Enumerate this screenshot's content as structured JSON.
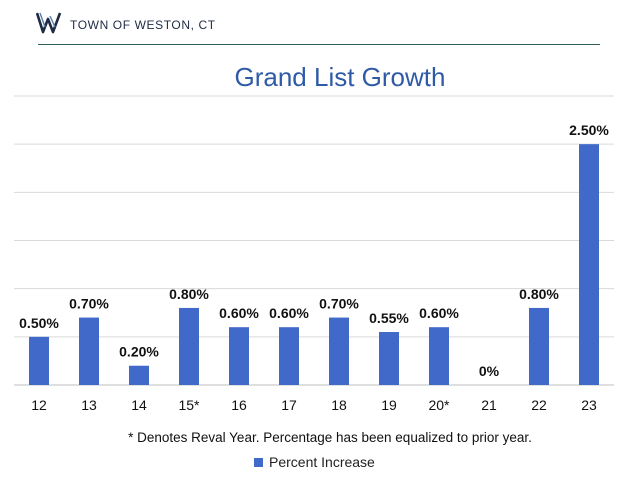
{
  "header": {
    "org_name": "TOWN OF WESTON, CT",
    "logo_icon": "weston-w-logo-icon"
  },
  "chart_data": {
    "type": "bar",
    "title": "Grand List Growth",
    "categories": [
      "12",
      "13",
      "14",
      "15*",
      "16",
      "17",
      "18",
      "19",
      "20*",
      "21",
      "22",
      "23"
    ],
    "series": [
      {
        "name": "Percent Increase",
        "values": [
          0.5,
          0.7,
          0.2,
          0.8,
          0.6,
          0.6,
          0.7,
          0.55,
          0.6,
          0,
          0.8,
          2.5
        ],
        "labels": [
          "0.50%",
          "0.70%",
          "0.20%",
          "0.80%",
          "0.60%",
          "0.60%",
          "0.70%",
          "0.55%",
          "0.60%",
          "0%",
          "0.80%",
          "2.50%"
        ],
        "color": "#4169c9"
      }
    ],
    "ylim": [
      0,
      3.0
    ],
    "y_gridlines": [
      0.5,
      1.0,
      1.5,
      2.0,
      2.5,
      3.0
    ],
    "grid": true,
    "legend_position": "bottom",
    "footnote": "* Denotes Reval Year. Percentage has been equalized to prior year."
  },
  "colors": {
    "bar": "#4169c9",
    "title": "#2f5aa6",
    "rule": "#2d5f5a",
    "grid": "#d9d9d9"
  }
}
